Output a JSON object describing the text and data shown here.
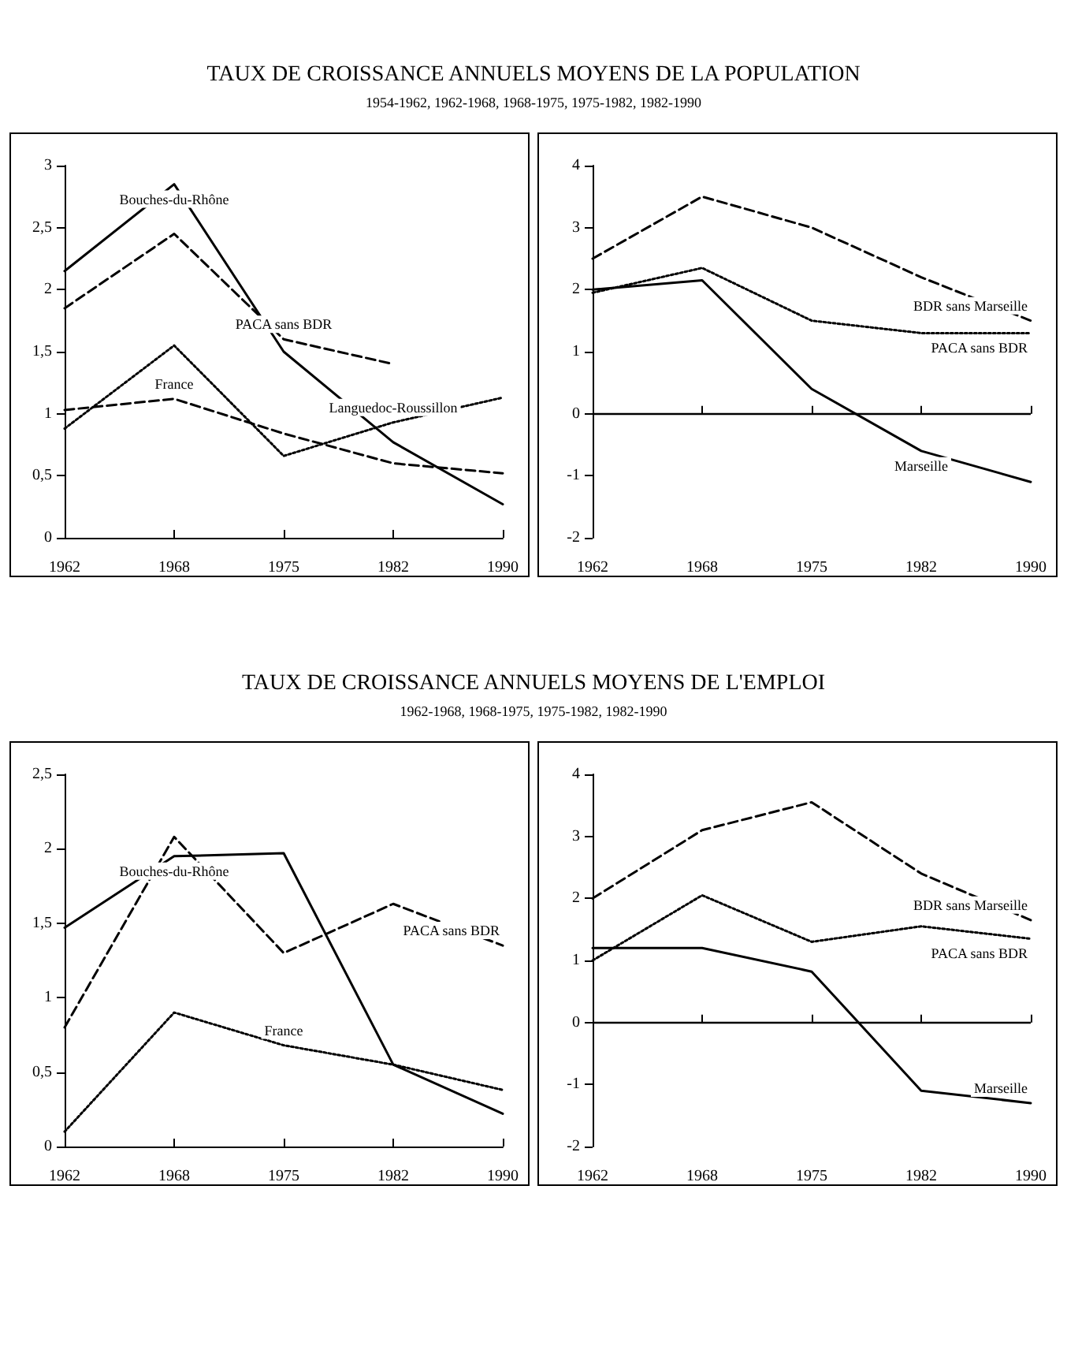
{
  "chart_data": [
    {
      "type": "line",
      "title": "TAUX DE CROISSANCE ANNUELS MOYENS DE LA POPULATION",
      "subtitle": "1954-1962, 1962-1968, 1968-1975, 1975-1982, 1982-1990",
      "categories": [
        "1962",
        "1968",
        "1975",
        "1982",
        "1990"
      ],
      "ylim": [
        0,
        3
      ],
      "yticks": [
        0,
        {
          "value": 0.5,
          "label": "0,5"
        },
        1,
        {
          "value": 1.5,
          "label": "1,5"
        },
        2,
        {
          "value": 2.5,
          "label": "2,5"
        },
        3
      ],
      "grid": false,
      "legend": false,
      "series": [
        {
          "name": "Bouches-du-Rhône",
          "color": "#000000",
          "line_style": "solid",
          "values": [
            2.15,
            2.85,
            1.5,
            0.77,
            0.27
          ]
        },
        {
          "name": "PACA sans BDR",
          "color": "#000000",
          "line_style": "dashed",
          "values": [
            1.85,
            2.45,
            1.6,
            1.4,
            null
          ]
        },
        {
          "name": "Languedoc-Roussillon",
          "color": "#000000",
          "line_style": "dotted",
          "values": [
            0.88,
            1.55,
            0.66,
            0.93,
            1.13
          ]
        },
        {
          "name": "France",
          "color": "#000000",
          "line_style": "dashed",
          "values": [
            1.03,
            1.12,
            0.84,
            0.6,
            0.52
          ]
        }
      ]
    },
    {
      "type": "line",
      "categories": [
        "1962",
        "1968",
        "1975",
        "1982",
        "1990"
      ],
      "ylim": [
        -2,
        4
      ],
      "yticks": [
        -2,
        -1,
        0,
        1,
        2,
        3,
        4
      ],
      "ref_lines": [
        {
          "axis": "y",
          "value": 0
        }
      ],
      "grid": false,
      "legend": false,
      "series": [
        {
          "name": "BDR sans Marseille",
          "color": "#000000",
          "line_style": "dashed",
          "values": [
            2.5,
            3.5,
            3.0,
            2.2,
            1.5
          ]
        },
        {
          "name": "PACA sans BDR",
          "color": "#000000",
          "line_style": "dotted",
          "values": [
            1.95,
            2.35,
            1.5,
            1.3,
            1.3
          ]
        },
        {
          "name": "Marseille",
          "color": "#000000",
          "line_style": "solid",
          "values": [
            2.0,
            2.15,
            0.4,
            -0.6,
            -1.1
          ]
        }
      ]
    },
    {
      "type": "line",
      "title": "TAUX DE CROISSANCE ANNUELS MOYENS DE L'EMPLOI",
      "subtitle": "1962-1968, 1968-1975, 1975-1982, 1982-1990",
      "categories": [
        "1962",
        "1968",
        "1975",
        "1982",
        "1990"
      ],
      "ylim": [
        0,
        2.5
      ],
      "yticks": [
        0,
        {
          "value": 0.5,
          "label": "0,5"
        },
        1,
        {
          "value": 1.5,
          "label": "1,5"
        },
        2,
        {
          "value": 2.5,
          "label": "2,5"
        }
      ],
      "grid": false,
      "legend": false,
      "series": [
        {
          "name": "Bouches-du-Rhône",
          "color": "#000000",
          "line_style": "solid",
          "values": [
            1.47,
            1.95,
            1.97,
            0.55,
            0.22
          ]
        },
        {
          "name": "PACA sans BDR",
          "color": "#000000",
          "line_style": "dashed",
          "values": [
            0.8,
            2.08,
            1.3,
            1.63,
            1.35
          ]
        },
        {
          "name": "France",
          "color": "#000000",
          "line_style": "dotted",
          "values": [
            0.1,
            0.9,
            0.68,
            0.55,
            0.38
          ]
        }
      ]
    },
    {
      "type": "line",
      "categories": [
        "1962",
        "1968",
        "1975",
        "1982",
        "1990"
      ],
      "ylim": [
        -2,
        4
      ],
      "yticks": [
        -2,
        -1,
        0,
        1,
        2,
        3,
        4
      ],
      "ref_lines": [
        {
          "axis": "y",
          "value": 0
        }
      ],
      "grid": false,
      "legend": false,
      "series": [
        {
          "name": "BDR sans Marseille",
          "color": "#000000",
          "line_style": "dashed",
          "values": [
            2.0,
            3.1,
            3.55,
            2.4,
            1.65
          ]
        },
        {
          "name": "PACA sans BDR",
          "color": "#000000",
          "line_style": "dotted",
          "values": [
            1.0,
            2.05,
            1.3,
            1.55,
            1.35
          ]
        },
        {
          "name": "Marseille",
          "color": "#000000",
          "line_style": "solid",
          "values": [
            1.2,
            1.2,
            0.82,
            -1.1,
            -1.3
          ]
        }
      ]
    }
  ]
}
